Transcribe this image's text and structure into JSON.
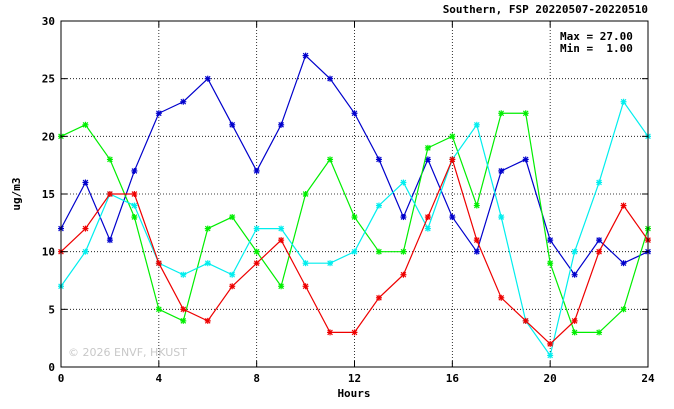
{
  "chart_data": {
    "type": "line",
    "title": "Southern, FSP 20220507-20220510",
    "xlabel": "Hours",
    "ylabel": "ug/m3",
    "xlim": [
      0,
      24
    ],
    "ylim": [
      0,
      30
    ],
    "xticks": [
      0,
      4,
      8,
      12,
      16,
      20,
      24
    ],
    "yticks": [
      0,
      5,
      10,
      15,
      20,
      25,
      30
    ],
    "grid": true,
    "annotations": [
      "Max = 27.00",
      "Min =  1.00"
    ],
    "watermark": "© 2026  ENVF, HKUST",
    "x": [
      0,
      1,
      2,
      3,
      4,
      5,
      6,
      7,
      8,
      9,
      10,
      11,
      12,
      13,
      14,
      15,
      16,
      17,
      18,
      19,
      20,
      21,
      22,
      23,
      24
    ],
    "series": [
      {
        "color": "#0000cc",
        "values": [
          12,
          16,
          11,
          17,
          22,
          23,
          25,
          21,
          17,
          21,
          27,
          25,
          22,
          18,
          13,
          18,
          13,
          10,
          17,
          18,
          11,
          8,
          11,
          9,
          10
        ]
      },
      {
        "color": "#00ee00",
        "values": [
          20,
          21,
          18,
          13,
          5,
          4,
          12,
          13,
          10,
          7,
          15,
          18,
          13,
          10,
          10,
          19,
          20,
          14,
          22,
          22,
          9,
          3,
          3,
          5,
          12
        ]
      },
      {
        "color": "#00eeee",
        "values": [
          7,
          10,
          15,
          14,
          9,
          8,
          9,
          8,
          12,
          12,
          9,
          9,
          10,
          14,
          16,
          12,
          18,
          21,
          13,
          4,
          1,
          10,
          16,
          23,
          20
        ]
      },
      {
        "color": "#ee0000",
        "values": [
          10,
          12,
          15,
          15,
          9,
          5,
          4,
          7,
          9,
          11,
          7,
          3,
          3,
          6,
          8,
          13,
          18,
          11,
          6,
          4,
          2,
          4,
          10,
          14,
          11
        ]
      }
    ]
  }
}
